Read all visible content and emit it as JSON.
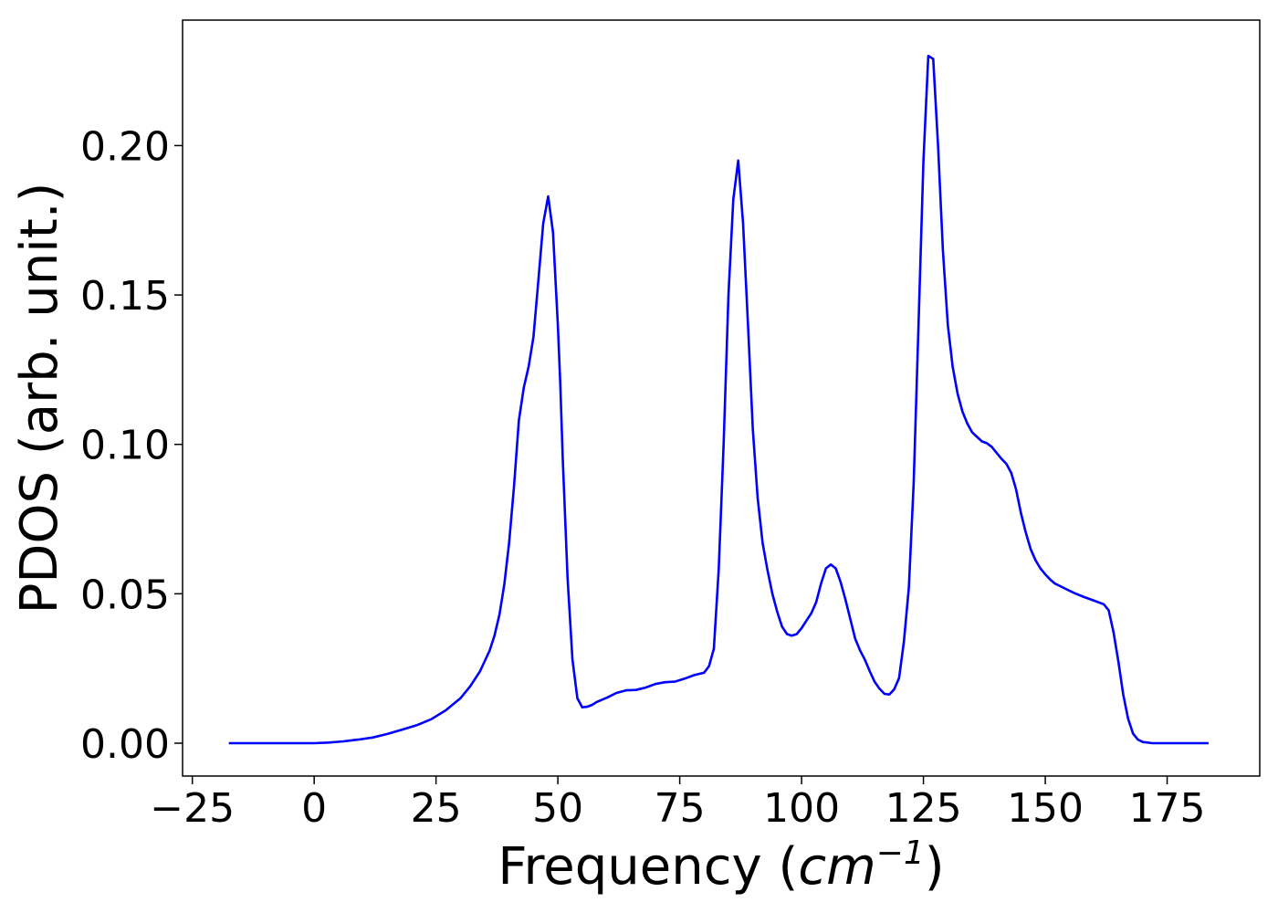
{
  "chart_data": {
    "type": "line",
    "title": "",
    "xlabel": "Frequency (cm⁻¹)",
    "xlabel_parts": {
      "prefix": "Frequency (",
      "unit_base": "cm",
      "unit_exp": "−1",
      "suffix": ")"
    },
    "ylabel": "PDOS (arb. unit.)",
    "xlim": [
      -27,
      194
    ],
    "ylim": [
      -0.011,
      0.242
    ],
    "xticks": [
      -25,
      0,
      25,
      50,
      75,
      100,
      125,
      150,
      175
    ],
    "xtick_labels": [
      "−25",
      "0",
      "25",
      "50",
      "75",
      "100",
      "125",
      "150",
      "175"
    ],
    "yticks": [
      0.0,
      0.05,
      0.1,
      0.15,
      0.2
    ],
    "ytick_labels": [
      "0.00",
      "0.05",
      "0.10",
      "0.15",
      "0.20"
    ],
    "grid": false,
    "line_color": "#0000ff",
    "series": [
      {
        "x": [
          -17.5,
          -10,
          0,
          3,
          6,
          9,
          12,
          15,
          18,
          21,
          24,
          27,
          30,
          32,
          34,
          36,
          37,
          38,
          39,
          40,
          41,
          42,
          43,
          44,
          45,
          46,
          47,
          48,
          49,
          50,
          50.5,
          51,
          52,
          53,
          54,
          55,
          56,
          57,
          58,
          60,
          62,
          64,
          66,
          68,
          70,
          72,
          74,
          76,
          78,
          80,
          81,
          82,
          83,
          84,
          85,
          86,
          87,
          88,
          89,
          90,
          91,
          92,
          93,
          94,
          95,
          96,
          97,
          98,
          99,
          100,
          101,
          102,
          103,
          104,
          105,
          106,
          107,
          108,
          109,
          110,
          111,
          112,
          113,
          114,
          115,
          116,
          117,
          118,
          119,
          120,
          121,
          122,
          123,
          124,
          125,
          126,
          127,
          128,
          129,
          130,
          131,
          132,
          133,
          134,
          135,
          136,
          137,
          138,
          139,
          140,
          141,
          142,
          143,
          144,
          145,
          146,
          147,
          148,
          149,
          150,
          151,
          152,
          154,
          156,
          158,
          160,
          162,
          163,
          164,
          165,
          166,
          167,
          168,
          169,
          170,
          171,
          172,
          175,
          180,
          183.5
        ],
        "y": [
          0.0,
          0.0,
          0.0,
          0.0002,
          0.0006,
          0.0012,
          0.0019,
          0.0031,
          0.0045,
          0.006,
          0.008,
          0.011,
          0.015,
          0.019,
          0.024,
          0.031,
          0.036,
          0.043,
          0.053,
          0.067,
          0.086,
          0.108,
          0.119,
          0.126,
          0.136,
          0.155,
          0.174,
          0.183,
          0.171,
          0.14,
          0.12,
          0.095,
          0.055,
          0.028,
          0.015,
          0.012,
          0.0122,
          0.0128,
          0.0138,
          0.0152,
          0.0168,
          0.0177,
          0.0178,
          0.0186,
          0.0198,
          0.0204,
          0.0206,
          0.0216,
          0.0228,
          0.0236,
          0.0258,
          0.0316,
          0.058,
          0.1,
          0.15,
          0.182,
          0.195,
          0.174,
          0.14,
          0.105,
          0.082,
          0.067,
          0.058,
          0.05,
          0.044,
          0.039,
          0.0365,
          0.036,
          0.0365,
          0.0385,
          0.041,
          0.0435,
          0.0472,
          0.0535,
          0.0585,
          0.0598,
          0.0585,
          0.054,
          0.048,
          0.0415,
          0.035,
          0.031,
          0.0279,
          0.024,
          0.0205,
          0.0182,
          0.0165,
          0.0163,
          0.018,
          0.0218,
          0.034,
          0.052,
          0.087,
          0.14,
          0.195,
          0.23,
          0.229,
          0.2,
          0.165,
          0.14,
          0.126,
          0.117,
          0.111,
          0.107,
          0.104,
          0.1025,
          0.101,
          0.1004,
          0.0992,
          0.0972,
          0.0952,
          0.0935,
          0.0905,
          0.085,
          0.077,
          0.0705,
          0.065,
          0.0612,
          0.0585,
          0.0565,
          0.0548,
          0.0534,
          0.0518,
          0.0502,
          0.0489,
          0.0477,
          0.0465,
          0.0445,
          0.0372,
          0.0272,
          0.0162,
          0.0082,
          0.0032,
          0.0012,
          0.0004,
          0.0002,
          0.0,
          0.0,
          0.0,
          0.0
        ]
      }
    ]
  }
}
